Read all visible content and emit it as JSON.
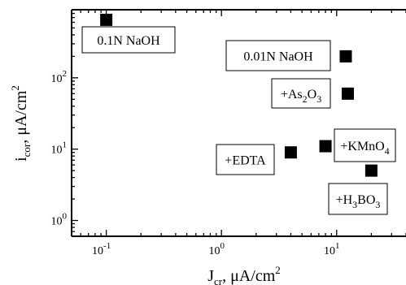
{
  "chart_data": {
    "type": "scatter",
    "title": "",
    "x_scale": "log",
    "y_scale": "log",
    "xlim": [
      0.05,
      40
    ],
    "ylim": [
      0.6,
      900
    ],
    "grid": false,
    "xlabel": {
      "main": "J",
      "sub": "cr",
      "rest": ", μA/cm",
      "sup": "2"
    },
    "ylabel": {
      "main": "i",
      "sub": "cor",
      "rest": ", μA/cm",
      "sup": "2"
    },
    "x_ticks": [
      {
        "value": 0.1,
        "base": "10",
        "exp": "-1"
      },
      {
        "value": 1,
        "base": "10",
        "exp": "0"
      },
      {
        "value": 10,
        "base": "10",
        "exp": "1"
      }
    ],
    "y_ticks": [
      {
        "value": 1,
        "base": "10",
        "exp": "0"
      },
      {
        "value": 10,
        "base": "10",
        "exp": "1"
      },
      {
        "value": 100,
        "base": "10",
        "exp": "2"
      }
    ],
    "points": [
      {
        "x": 0.1,
        "y": 650
      },
      {
        "x": 12,
        "y": 200
      },
      {
        "x": 12.5,
        "y": 60
      },
      {
        "x": 4,
        "y": 9
      },
      {
        "x": 8,
        "y": 11
      },
      {
        "x": 20,
        "y": 5
      }
    ],
    "annotations": [
      {
        "id": "naoh-01",
        "parts": [
          {
            "t": "0.1N NaOH"
          }
        ]
      },
      {
        "id": "naoh-001",
        "parts": [
          {
            "t": "0.01N NaOH"
          }
        ]
      },
      {
        "id": "as2o3",
        "parts": [
          {
            "t": "+As"
          },
          {
            "t": "2",
            "sub": true
          },
          {
            "t": "O"
          },
          {
            "t": "3",
            "sub": true
          }
        ]
      },
      {
        "id": "kmno4",
        "parts": [
          {
            "t": "+KMnO"
          },
          {
            "t": "4",
            "sub": true
          }
        ]
      },
      {
        "id": "edta",
        "parts": [
          {
            "t": "+EDTA"
          }
        ]
      },
      {
        "id": "h3bo3",
        "parts": [
          {
            "t": "+H"
          },
          {
            "t": "3",
            "sub": true
          },
          {
            "t": "BO"
          },
          {
            "t": "3",
            "sub": true
          }
        ]
      }
    ]
  }
}
